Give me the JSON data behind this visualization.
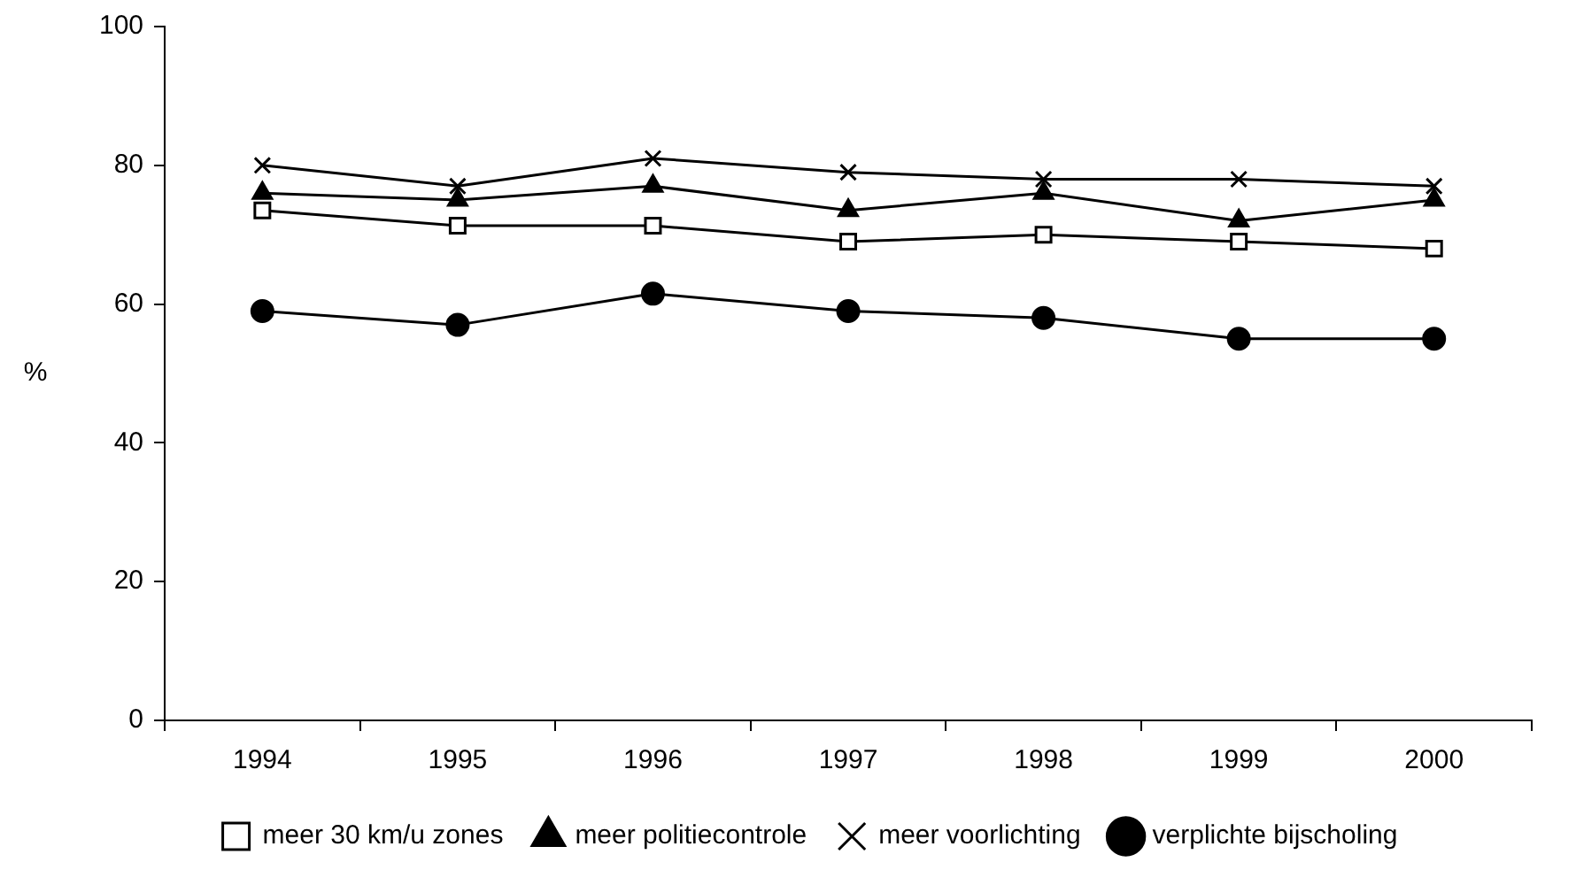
{
  "chart_data": {
    "type": "line",
    "ylabel": "%",
    "categories": [
      "1994",
      "1995",
      "1996",
      "1997",
      "1998",
      "1999",
      "2000"
    ],
    "ylim": [
      0,
      100
    ],
    "yticks": [
      0,
      20,
      40,
      60,
      80,
      100
    ],
    "grid": false,
    "legend": "bottom",
    "line_style": "solid",
    "series": [
      {
        "name": "meer 30 km/u zones",
        "color": "#000000",
        "marker": "square",
        "values": [
          73.5,
          71.3,
          71.3,
          69,
          70,
          69,
          68
        ]
      },
      {
        "name": "meer politiecontrole",
        "color": "#000000",
        "marker": "triangle",
        "values": [
          76,
          75,
          77,
          73.5,
          76,
          72,
          75
        ]
      },
      {
        "name": "meer voorlichting",
        "color": "#000000",
        "marker": "cross",
        "values": [
          80,
          77,
          81,
          79,
          78,
          78,
          77
        ]
      },
      {
        "name": "verplichte bijscholing",
        "color": "#000000",
        "marker": "circle",
        "values": [
          59,
          57,
          61.5,
          59,
          58,
          55,
          55
        ]
      }
    ]
  }
}
